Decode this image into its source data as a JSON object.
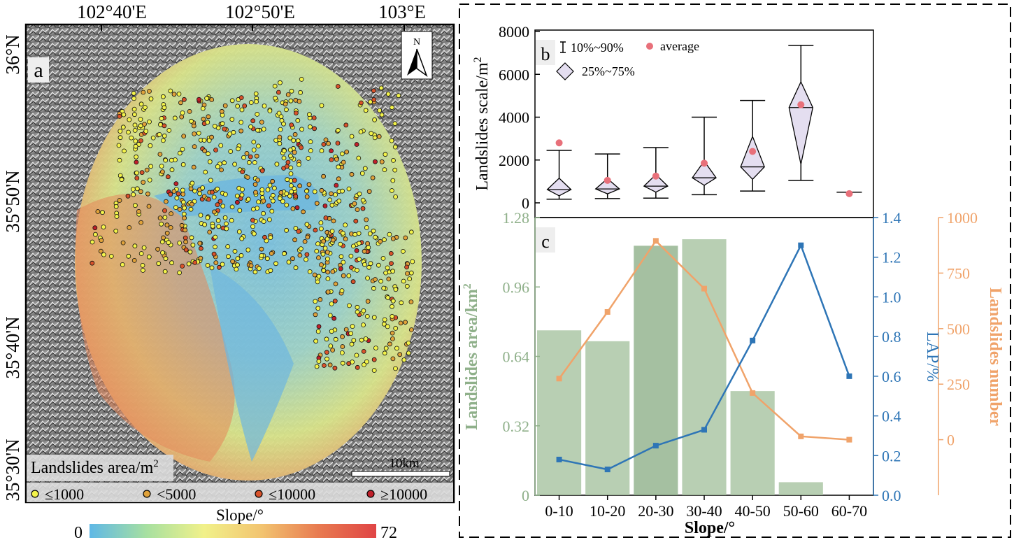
{
  "panel_a": {
    "label": "a",
    "lon_ticks": [
      "102°40'E",
      "102°50'E",
      "103°E"
    ],
    "lat_ticks": [
      "36°N",
      "35°50'N",
      "35°40'N",
      "35°30'N"
    ],
    "north_arrow": "N",
    "legend_title": "Landslides area/m",
    "legend_title_sup": "2",
    "legend_items": [
      {
        "label": "≤1000",
        "color": "#f3f34a"
      },
      {
        "label": "<5000",
        "color": "#e0a23a"
      },
      {
        "label": "≤10000",
        "color": "#d9532b"
      },
      {
        "label": "≥10000",
        "color": "#c0202a"
      }
    ],
    "scale_bar_label": "10km",
    "colorbar_title": "Slope/°",
    "colorbar_min": "0",
    "colorbar_max": "72",
    "colorbar_colors": [
      "#5fb8e6",
      "#a7e0a0",
      "#f1f18a",
      "#f2c470",
      "#e87a50",
      "#e04545"
    ]
  },
  "chart_data": [
    {
      "panel": "b",
      "type": "box",
      "ylabel": "Landslides scale/m",
      "ylabel_sup": "2",
      "ylim": [
        0,
        8000
      ],
      "yticks": [
        "0",
        "2000",
        "4000",
        "6000",
        "8000"
      ],
      "categories": [
        "0-10",
        "10-20",
        "20-30",
        "30-40",
        "40-50",
        "50-60",
        "60-70"
      ],
      "p10": [
        170,
        200,
        220,
        380,
        550,
        1050,
        500
      ],
      "p25": [
        330,
        420,
        500,
        820,
        1100,
        1800,
        500
      ],
      "median": [
        620,
        650,
        780,
        1170,
        1680,
        4450,
        500
      ],
      "p75": [
        1150,
        1130,
        1320,
        1950,
        3100,
        5650,
        500
      ],
      "p90": [
        2450,
        2280,
        2580,
        4000,
        4780,
        7350,
        500
      ],
      "average": [
        2800,
        1050,
        1250,
        1850,
        2400,
        4580,
        430
      ],
      "legend": {
        "whisker": "10%~90%",
        "average": "average",
        "box": "25%~75%"
      },
      "colors": {
        "box_fill": "#e4def0",
        "average": "#e8707a",
        "line": "#111111"
      }
    },
    {
      "panel": "c",
      "type": "bar+line",
      "xlabel": "Slope/°",
      "categories": [
        "0-10",
        "10-20",
        "20-30",
        "30-40",
        "40-50",
        "50-60",
        "60-70"
      ],
      "series": [
        {
          "name": "Landslides area/km",
          "name_sup": "2",
          "type": "bar",
          "axis": "left",
          "values": [
            0.76,
            0.71,
            1.15,
            1.18,
            0.48,
            0.06,
            0.0
          ],
          "color": "#a6c3a0",
          "alt_color": "#8fb08a",
          "ylim": [
            0,
            1.28
          ],
          "yticks": [
            "0",
            "0.32",
            "0.64",
            "0.96",
            "1.28"
          ]
        },
        {
          "name": "LAP/%",
          "type": "line",
          "axis": "right1",
          "values": [
            0.18,
            0.13,
            0.25,
            0.33,
            0.78,
            1.26,
            0.6
          ],
          "color": "#2e75b6",
          "ylim": [
            0,
            1.4
          ],
          "yticks": [
            "0.0",
            "0.2",
            "0.4",
            "0.6",
            "0.8",
            "1.0",
            "1.2",
            "1.4"
          ]
        },
        {
          "name": "Landslides number",
          "type": "line",
          "axis": "right2",
          "values": [
            275,
            575,
            895,
            680,
            210,
            15,
            0
          ],
          "color": "#f0a36a",
          "ylim": [
            -250,
            1000
          ],
          "yticks": [
            "0",
            "250",
            "500",
            "750",
            "1000"
          ]
        }
      ]
    }
  ]
}
